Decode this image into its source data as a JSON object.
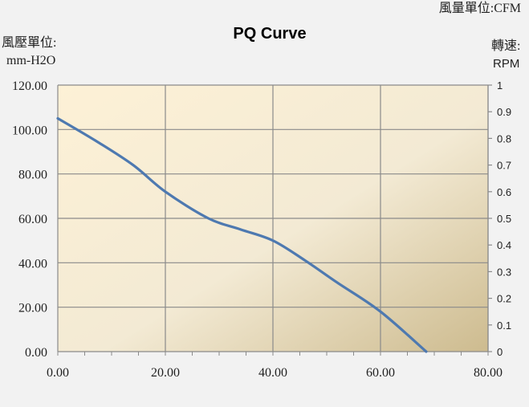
{
  "chart_data": {
    "type": "line",
    "title": "PQ Curve",
    "x_unit_label": "風量單位:CFM",
    "y_left_label_line1": "風壓單位:",
    "y_left_label_line2": "mm-H2O",
    "y_right_label_line1": "轉速:",
    "y_right_label_line2": "RPM",
    "xlim": [
      0,
      80
    ],
    "ylim": [
      0,
      120
    ],
    "y2lim": [
      0,
      1
    ],
    "x_ticks": [
      "0.00",
      "20.00",
      "40.00",
      "60.00",
      "80.00"
    ],
    "y_ticks": [
      "0.00",
      "20.00",
      "40.00",
      "60.00",
      "80.00",
      "100.00",
      "120.00"
    ],
    "y2_ticks": [
      "0",
      "0.1",
      "0.2",
      "0.3",
      "0.4",
      "0.5",
      "0.6",
      "0.7",
      "0.8",
      "0.9",
      "1"
    ],
    "grid": true,
    "series": [
      {
        "x": [
          0,
          7,
          14,
          20,
          28,
          34,
          40,
          46,
          52,
          60,
          68.5
        ],
        "y": [
          105,
          95,
          84,
          72,
          60,
          55,
          50,
          41,
          31,
          18,
          0
        ],
        "color": "#4e79b0"
      }
    ]
  }
}
